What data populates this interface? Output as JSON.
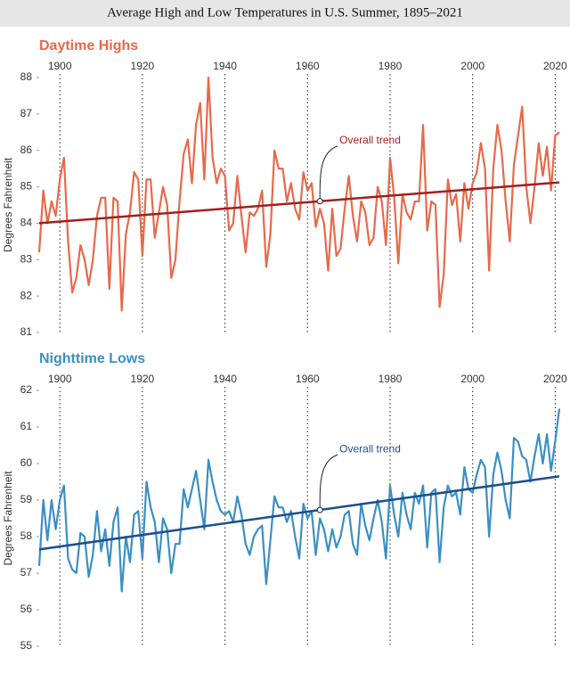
{
  "title": "Average High and Low Temperatures in U.S. Summer, 1895–2021",
  "chart_data": [
    {
      "type": "line",
      "title": "Daytime Highs",
      "ylabel": "Degrees Fahrenheit",
      "color": "#e8694a",
      "x": [
        1895,
        1896,
        1897,
        1898,
        1899,
        1900,
        1901,
        1902,
        1903,
        1904,
        1905,
        1906,
        1907,
        1908,
        1909,
        1910,
        1911,
        1912,
        1913,
        1914,
        1915,
        1916,
        1917,
        1918,
        1919,
        1920,
        1921,
        1922,
        1923,
        1924,
        1925,
        1926,
        1927,
        1928,
        1929,
        1930,
        1931,
        1932,
        1933,
        1934,
        1935,
        1936,
        1937,
        1938,
        1939,
        1940,
        1941,
        1942,
        1943,
        1944,
        1945,
        1946,
        1947,
        1948,
        1949,
        1950,
        1951,
        1952,
        1953,
        1954,
        1955,
        1956,
        1957,
        1958,
        1959,
        1960,
        1961,
        1962,
        1963,
        1964,
        1965,
        1966,
        1967,
        1968,
        1969,
        1970,
        1971,
        1972,
        1973,
        1974,
        1975,
        1976,
        1977,
        1978,
        1979,
        1980,
        1981,
        1982,
        1983,
        1984,
        1985,
        1986,
        1987,
        1988,
        1989,
        1990,
        1991,
        1992,
        1993,
        1994,
        1995,
        1996,
        1997,
        1998,
        1999,
        2000,
        2001,
        2002,
        2003,
        2004,
        2005,
        2006,
        2007,
        2008,
        2009,
        2010,
        2011,
        2012,
        2013,
        2014,
        2015,
        2016,
        2017,
        2018,
        2019,
        2020,
        2021
      ],
      "values": [
        83.2,
        84.9,
        84.0,
        84.6,
        84.2,
        85.2,
        85.8,
        83.5,
        82.1,
        82.5,
        83.4,
        83.0,
        82.3,
        83.0,
        84.2,
        84.7,
        84.7,
        82.2,
        84.7,
        84.6,
        81.6,
        83.7,
        84.3,
        85.4,
        85.2,
        83.1,
        85.2,
        85.2,
        83.6,
        84.3,
        85.0,
        84.5,
        82.5,
        83.0,
        84.6,
        85.9,
        86.3,
        85.1,
        86.7,
        87.3,
        85.2,
        88.0,
        85.8,
        85.1,
        85.5,
        85.3,
        83.8,
        84.0,
        85.3,
        84.2,
        83.2,
        84.3,
        84.2,
        84.4,
        84.9,
        82.8,
        83.7,
        86.0,
        85.5,
        85.5,
        84.6,
        85.1,
        84.4,
        84.1,
        85.4,
        84.9,
        85.1,
        83.9,
        84.4,
        84.0,
        82.7,
        84.4,
        83.1,
        83.3,
        84.4,
        85.3,
        84.2,
        83.5,
        84.6,
        84.3,
        83.4,
        83.6,
        85.0,
        84.6,
        83.4,
        85.8,
        84.7,
        82.9,
        84.8,
        84.3,
        84.1,
        84.6,
        84.6,
        86.7,
        83.8,
        84.6,
        84.5,
        81.7,
        82.6,
        85.2,
        84.5,
        84.8,
        83.5,
        85.1,
        84.4,
        85.1,
        85.4,
        86.2,
        85.5,
        82.7,
        85.5,
        86.7,
        86.0,
        84.6,
        83.5,
        85.6,
        86.4,
        87.2,
        85.0,
        84.0,
        85.0,
        86.2,
        85.3,
        86.1,
        84.9,
        86.4,
        86.5
      ],
      "trend": {
        "x": [
          1895,
          2021
        ],
        "values": [
          84.0,
          85.12
        ],
        "color": "#a31f1f"
      },
      "annotation": {
        "text": "Overall trend",
        "x": 1963
      },
      "xlim": [
        1895,
        2021
      ],
      "xticks": [
        1900,
        1920,
        1940,
        1960,
        1980,
        2000,
        2020
      ],
      "ylim": [
        81,
        88
      ],
      "yticks": [
        81,
        82,
        83,
        84,
        85,
        86,
        87,
        88
      ]
    },
    {
      "type": "line",
      "title": "Nighttime Lows",
      "ylabel": "Degrees Fahrenheit",
      "color": "#3a8fc4",
      "x": [
        1895,
        1896,
        1897,
        1898,
        1899,
        1900,
        1901,
        1902,
        1903,
        1904,
        1905,
        1906,
        1907,
        1908,
        1909,
        1910,
        1911,
        1912,
        1913,
        1914,
        1915,
        1916,
        1917,
        1918,
        1919,
        1920,
        1921,
        1922,
        1923,
        1924,
        1925,
        1926,
        1927,
        1928,
        1929,
        1930,
        1931,
        1932,
        1933,
        1934,
        1935,
        1936,
        1937,
        1938,
        1939,
        1940,
        1941,
        1942,
        1943,
        1944,
        1945,
        1946,
        1947,
        1948,
        1949,
        1950,
        1951,
        1952,
        1953,
        1954,
        1955,
        1956,
        1957,
        1958,
        1959,
        1960,
        1961,
        1962,
        1963,
        1964,
        1965,
        1966,
        1967,
        1968,
        1969,
        1970,
        1971,
        1972,
        1973,
        1974,
        1975,
        1976,
        1977,
        1978,
        1979,
        1980,
        1981,
        1982,
        1983,
        1984,
        1985,
        1986,
        1987,
        1988,
        1989,
        1990,
        1991,
        1992,
        1993,
        1994,
        1995,
        1996,
        1997,
        1998,
        1999,
        2000,
        2001,
        2002,
        2003,
        2004,
        2005,
        2006,
        2007,
        2008,
        2009,
        2010,
        2011,
        2012,
        2013,
        2014,
        2015,
        2016,
        2017,
        2018,
        2019,
        2020,
        2021
      ],
      "values": [
        57.2,
        59.0,
        57.9,
        59.0,
        58.2,
        59.0,
        59.4,
        57.4,
        57.1,
        57.0,
        58.1,
        58.0,
        56.9,
        57.5,
        58.7,
        57.6,
        58.2,
        57.2,
        58.4,
        58.8,
        56.5,
        58.0,
        57.3,
        58.6,
        58.7,
        57.4,
        59.5,
        58.8,
        58.4,
        57.3,
        58.5,
        58.2,
        57.0,
        57.8,
        57.8,
        59.3,
        58.8,
        59.3,
        59.8,
        59.0,
        58.2,
        60.1,
        59.5,
        59.0,
        58.7,
        58.6,
        58.7,
        58.4,
        59.1,
        58.6,
        57.8,
        57.5,
        58.0,
        58.2,
        58.3,
        56.7,
        57.9,
        59.1,
        58.8,
        58.8,
        58.4,
        58.7,
        58.0,
        57.4,
        58.9,
        58.5,
        58.7,
        57.5,
        58.5,
        58.2,
        57.6,
        58.2,
        57.7,
        58.0,
        58.6,
        58.7,
        57.8,
        57.5,
        58.9,
        58.3,
        57.9,
        58.5,
        59.0,
        58.4,
        57.4,
        59.4,
        58.6,
        58.0,
        59.2,
        58.6,
        58.2,
        59.2,
        58.9,
        59.4,
        57.7,
        59.2,
        59.3,
        57.3,
        58.8,
        59.4,
        59.1,
        59.2,
        58.6,
        59.9,
        59.3,
        59.2,
        59.7,
        60.1,
        59.9,
        58.0,
        59.7,
        60.3,
        59.8,
        59.0,
        58.5,
        60.7,
        60.6,
        60.2,
        60.1,
        59.5,
        60.2,
        60.8,
        60.0,
        60.8,
        59.8,
        60.6,
        61.5
      ],
      "trend": {
        "x": [
          1895,
          2021
        ],
        "values": [
          57.65,
          59.65
        ],
        "color": "#1a4f8f"
      },
      "annotation": {
        "text": "Overall trend",
        "x": 1963
      },
      "xlim": [
        1895,
        2021
      ],
      "xticks": [
        1900,
        1920,
        1940,
        1960,
        1980,
        2000,
        2020
      ],
      "ylim": [
        55,
        62
      ],
      "yticks": [
        55,
        56,
        57,
        58,
        59,
        60,
        61,
        62
      ]
    }
  ]
}
